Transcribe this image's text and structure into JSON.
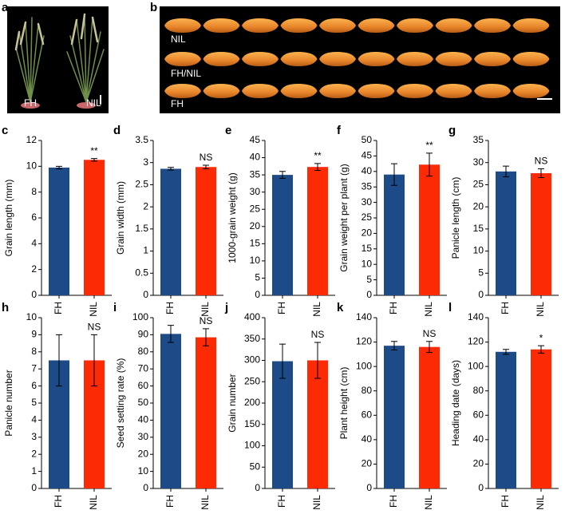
{
  "panel_a": {
    "letter": "a",
    "labels": [
      "FH",
      "NIL"
    ]
  },
  "panel_b": {
    "letter": "b",
    "labels": [
      "NIL",
      "FH/NIL",
      "FH"
    ]
  },
  "chart_data": [
    {
      "type": "bar",
      "panel": "c",
      "ylabel": "Grain length (mm)",
      "categories": [
        "FH",
        "NIL"
      ],
      "values": [
        9.9,
        10.5
      ],
      "errors": [
        0.1,
        0.1
      ],
      "colors": [
        "#1d4b87",
        "#fc2b06"
      ],
      "annotation": "**",
      "ylim": [
        0,
        12
      ],
      "yticks": [
        0,
        2,
        4,
        6,
        8,
        10,
        12
      ]
    },
    {
      "type": "bar",
      "panel": "d",
      "ylabel": "Grain width (mm)",
      "categories": [
        "FH",
        "NIL"
      ],
      "values": [
        2.86,
        2.9
      ],
      "errors": [
        0.03,
        0.04
      ],
      "colors": [
        "#1d4b87",
        "#fc2b06"
      ],
      "annotation": "NS",
      "ylim": [
        0,
        3.5
      ],
      "yticks": [
        0,
        0.5,
        1,
        1.5,
        2,
        2.5,
        3,
        3.5
      ]
    },
    {
      "type": "bar",
      "panel": "e",
      "ylabel": "1000-grain weight (g)",
      "categories": [
        "FH",
        "NIL"
      ],
      "values": [
        35,
        37.3
      ],
      "errors": [
        1,
        1
      ],
      "colors": [
        "#1d4b87",
        "#fc2b06"
      ],
      "annotation": "**",
      "ylim": [
        0,
        45
      ],
      "yticks": [
        0,
        5,
        10,
        15,
        20,
        25,
        30,
        35,
        40,
        45
      ]
    },
    {
      "type": "bar",
      "panel": "f",
      "ylabel": "Grain weight per plant (g)",
      "categories": [
        "FH",
        "NIL"
      ],
      "values": [
        39,
        42.2
      ],
      "errors": [
        3.5,
        3.7
      ],
      "colors": [
        "#1d4b87",
        "#fc2b06"
      ],
      "annotation": "**",
      "ylim": [
        0,
        50
      ],
      "yticks": [
        0,
        5,
        10,
        15,
        20,
        25,
        30,
        35,
        40,
        45,
        50
      ]
    },
    {
      "type": "bar",
      "panel": "g",
      "ylabel": "Panicle length (cm)",
      "categories": [
        "FH",
        "NIL"
      ],
      "values": [
        28,
        27.6
      ],
      "errors": [
        1.2,
        1
      ],
      "colors": [
        "#1d4b87",
        "#fc2b06"
      ],
      "annotation": "NS",
      "ylim": [
        0,
        35
      ],
      "yticks": [
        0,
        5,
        10,
        15,
        20,
        25,
        30,
        35
      ]
    },
    {
      "type": "bar",
      "panel": "h",
      "ylabel": "Panicle number",
      "categories": [
        "FH",
        "NIL"
      ],
      "values": [
        7.5,
        7.5
      ],
      "errors": [
        1.5,
        1.5
      ],
      "colors": [
        "#1d4b87",
        "#fc2b06"
      ],
      "annotation": "NS",
      "ylim": [
        0,
        10
      ],
      "yticks": [
        0,
        1,
        2,
        3,
        4,
        5,
        6,
        7,
        8,
        9,
        10
      ]
    },
    {
      "type": "bar",
      "panel": "i",
      "ylabel": "Seed setting rate (%)",
      "categories": [
        "FH",
        "NIL"
      ],
      "values": [
        90.5,
        88.5
      ],
      "errors": [
        5,
        5
      ],
      "colors": [
        "#1d4b87",
        "#fc2b06"
      ],
      "annotation": "NS",
      "ylim": [
        0,
        100
      ],
      "yticks": [
        0,
        10,
        20,
        30,
        40,
        50,
        60,
        70,
        80,
        90,
        100
      ]
    },
    {
      "type": "bar",
      "panel": "j",
      "ylabel": "Grain number",
      "categories": [
        "FH",
        "NIL"
      ],
      "values": [
        298,
        300
      ],
      "errors": [
        40,
        42
      ],
      "colors": [
        "#1d4b87",
        "#fc2b06"
      ],
      "annotation": "NS",
      "ylim": [
        0,
        400
      ],
      "yticks": [
        0,
        50,
        100,
        150,
        200,
        250,
        300,
        350,
        400
      ]
    },
    {
      "type": "bar",
      "panel": "k",
      "ylabel": "Plant height (cm)",
      "categories": [
        "FH",
        "NIL"
      ],
      "values": [
        117,
        116
      ],
      "errors": [
        3.5,
        4.5
      ],
      "colors": [
        "#1d4b87",
        "#fc2b06"
      ],
      "annotation": "NS",
      "ylim": [
        0,
        140
      ],
      "yticks": [
        0,
        20,
        40,
        60,
        80,
        100,
        120,
        140
      ]
    },
    {
      "type": "bar",
      "panel": "l",
      "ylabel": "Heading date (days)",
      "categories": [
        "FH",
        "NIL"
      ],
      "values": [
        112,
        114
      ],
      "errors": [
        2,
        3
      ],
      "colors": [
        "#1d4b87",
        "#fc2b06"
      ],
      "annotation": "*",
      "ylim": [
        0,
        140
      ],
      "yticks": [
        0,
        20,
        40,
        60,
        80,
        100,
        120,
        140
      ]
    }
  ]
}
